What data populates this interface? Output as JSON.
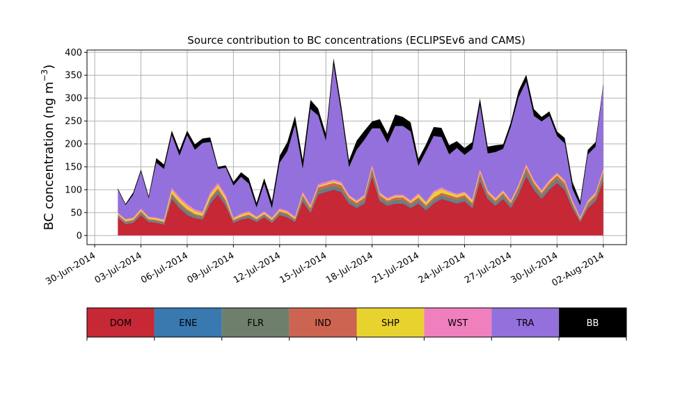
{
  "chart_data": {
    "type": "area",
    "title": "Source contribution to BC concentrations (ECLIPSEv6 and CAMS)",
    "ylabel": "BC concentration (ng m",
    "ylabel_sup": "−3",
    "ylabel_close": ")",
    "xlabel": "",
    "grid": true,
    "ylim": [
      -20,
      405
    ],
    "yticks": [
      0,
      50,
      100,
      150,
      200,
      250,
      300,
      350,
      400
    ],
    "xlim": [
      "2014-06-29T12:00",
      "2014-08-03T12:00"
    ],
    "xticks": [
      {
        "date": "2014-06-30",
        "label": "30-Jun-2014"
      },
      {
        "date": "2014-07-03",
        "label": "03-Jul-2014"
      },
      {
        "date": "2014-07-06",
        "label": "06-Jul-2014"
      },
      {
        "date": "2014-07-09",
        "label": "09-Jul-2014"
      },
      {
        "date": "2014-07-12",
        "label": "12-Jul-2014"
      },
      {
        "date": "2014-07-15",
        "label": "15-Jul-2014"
      },
      {
        "date": "2014-07-18",
        "label": "18-Jul-2014"
      },
      {
        "date": "2014-07-21",
        "label": "21-Jul-2014"
      },
      {
        "date": "2014-07-24",
        "label": "24-Jul-2014"
      },
      {
        "date": "2014-07-27",
        "label": "27-Jul-2014"
      },
      {
        "date": "2014-07-30",
        "label": "30-Jul-2014"
      },
      {
        "date": "2014-08-02",
        "label": "02-Aug-2014"
      }
    ],
    "x": [
      "2014-07-01T12:00",
      "2014-07-02T00:00",
      "2014-07-02T12:00",
      "2014-07-03T00:00",
      "2014-07-03T12:00",
      "2014-07-04T00:00",
      "2014-07-04T12:00",
      "2014-07-05T00:00",
      "2014-07-05T12:00",
      "2014-07-06T00:00",
      "2014-07-06T12:00",
      "2014-07-07T00:00",
      "2014-07-07T12:00",
      "2014-07-08T00:00",
      "2014-07-08T12:00",
      "2014-07-09T00:00",
      "2014-07-09T12:00",
      "2014-07-10T00:00",
      "2014-07-10T12:00",
      "2014-07-11T00:00",
      "2014-07-11T12:00",
      "2014-07-12T00:00",
      "2014-07-12T12:00",
      "2014-07-13T00:00",
      "2014-07-13T12:00",
      "2014-07-14T00:00",
      "2014-07-14T12:00",
      "2014-07-15T00:00",
      "2014-07-15T12:00",
      "2014-07-16T00:00",
      "2014-07-16T12:00",
      "2014-07-17T00:00",
      "2014-07-17T12:00",
      "2014-07-18T00:00",
      "2014-07-18T12:00",
      "2014-07-19T00:00",
      "2014-07-19T12:00",
      "2014-07-20T00:00",
      "2014-07-20T12:00",
      "2014-07-21T00:00",
      "2014-07-21T12:00",
      "2014-07-22T00:00",
      "2014-07-22T12:00",
      "2014-07-23T00:00",
      "2014-07-23T12:00",
      "2014-07-24T00:00",
      "2014-07-24T12:00",
      "2014-07-25T00:00",
      "2014-07-25T12:00",
      "2014-07-26T00:00",
      "2014-07-26T12:00",
      "2014-07-27T00:00",
      "2014-07-27T12:00",
      "2014-07-28T00:00",
      "2014-07-28T12:00",
      "2014-07-29T00:00",
      "2014-07-29T12:00",
      "2014-07-30T00:00",
      "2014-07-30T12:00",
      "2014-07-31T00:00",
      "2014-07-31T12:00",
      "2014-08-01T00:00",
      "2014-08-01T12:00",
      "2014-08-02T00:00"
    ],
    "series": [
      {
        "name": "DOM",
        "color": "#c62836",
        "values": [
          40,
          25,
          28,
          45,
          30,
          28,
          24,
          80,
          60,
          45,
          38,
          35,
          70,
          90,
          65,
          28,
          35,
          38,
          30,
          40,
          28,
          45,
          40,
          30,
          75,
          50,
          90,
          95,
          100,
          95,
          70,
          60,
          70,
          130,
          75,
          65,
          70,
          70,
          60,
          70,
          55,
          70,
          80,
          75,
          70,
          75,
          60,
          120,
          80,
          65,
          80,
          60,
          90,
          130,
          100,
          80,
          100,
          115,
          100,
          60,
          30,
          60,
          75,
          120
        ]
      },
      {
        "name": "ENE",
        "color": "#3a78b0",
        "values": [
          1,
          1,
          1,
          1,
          1,
          1,
          1,
          2,
          2,
          2,
          1,
          1,
          2,
          2,
          2,
          1,
          1,
          1,
          1,
          1,
          1,
          1,
          1,
          1,
          2,
          1,
          2,
          2,
          2,
          2,
          2,
          2,
          2,
          2,
          2,
          2,
          2,
          2,
          2,
          2,
          2,
          2,
          2,
          2,
          2,
          2,
          2,
          2,
          2,
          2,
          2,
          2,
          2,
          2,
          2,
          2,
          2,
          2,
          2,
          2,
          1,
          2,
          2,
          3
        ]
      },
      {
        "name": "FLR",
        "color": "#6e7f6c",
        "values": [
          3,
          3,
          3,
          4,
          3,
          3,
          3,
          6,
          6,
          6,
          5,
          4,
          6,
          6,
          6,
          3,
          3,
          4,
          3,
          3,
          3,
          4,
          4,
          3,
          6,
          5,
          7,
          7,
          7,
          7,
          6,
          5,
          6,
          8,
          6,
          5,
          6,
          6,
          5,
          6,
          5,
          6,
          6,
          6,
          6,
          6,
          5,
          8,
          6,
          5,
          6,
          5,
          7,
          9,
          7,
          6,
          7,
          7,
          7,
          5,
          3,
          5,
          6,
          8
        ]
      },
      {
        "name": "IND",
        "color": "#cd6452",
        "values": [
          2,
          2,
          2,
          3,
          2,
          2,
          2,
          4,
          4,
          4,
          3,
          3,
          4,
          5,
          4,
          2,
          2,
          3,
          2,
          3,
          2,
          3,
          3,
          2,
          5,
          4,
          6,
          6,
          6,
          6,
          5,
          4,
          5,
          7,
          5,
          4,
          5,
          5,
          4,
          5,
          4,
          5,
          5,
          5,
          5,
          5,
          4,
          7,
          5,
          4,
          5,
          4,
          6,
          8,
          6,
          5,
          6,
          7,
          6,
          4,
          2,
          4,
          5,
          8
        ]
      },
      {
        "name": "SHP",
        "color": "#e8d22e",
        "values": [
          2,
          3,
          3,
          3,
          3,
          3,
          3,
          7,
          7,
          7,
          6,
          5,
          7,
          7,
          6,
          3,
          4,
          4,
          3,
          3,
          3,
          3,
          3,
          3,
          3,
          3,
          3,
          3,
          3,
          3,
          3,
          3,
          3,
          3,
          3,
          3,
          3,
          3,
          3,
          6,
          5,
          10,
          8,
          6,
          5,
          5,
          5,
          3,
          3,
          3,
          3,
          3,
          3,
          3,
          3,
          3,
          3,
          3,
          3,
          3,
          2,
          3,
          3,
          3
        ]
      },
      {
        "name": "WST",
        "color": "#f07fbd",
        "values": [
          2,
          2,
          2,
          3,
          2,
          2,
          2,
          5,
          5,
          5,
          4,
          4,
          5,
          5,
          5,
          2,
          3,
          3,
          2,
          3,
          2,
          3,
          3,
          2,
          4,
          3,
          4,
          4,
          4,
          4,
          3,
          3,
          3,
          4,
          3,
          3,
          3,
          3,
          3,
          3,
          3,
          4,
          4,
          3,
          3,
          3,
          3,
          4,
          3,
          3,
          3,
          3,
          3,
          4,
          3,
          3,
          3,
          3,
          3,
          3,
          2,
          3,
          3,
          4
        ]
      },
      {
        "name": "TRA",
        "color": "#9370db",
        "values": [
          50,
          30,
          50,
          80,
          40,
          120,
          110,
          115,
          90,
          150,
          130,
          150,
          110,
          30,
          60,
          70,
          80,
          60,
          20,
          60,
          20,
          100,
          130,
          200,
          50,
          210,
          150,
          90,
          250,
          150,
          60,
          110,
          120,
          80,
          140,
          120,
          150,
          150,
          150,
          60,
          110,
          120,
          110,
          80,
          100,
          80,
          110,
          140,
          80,
          100,
          90,
          160,
          190,
          180,
          140,
          150,
          140,
          80,
          80,
          25,
          25,
          100,
          100,
          180
        ]
      },
      {
        "name": "BB",
        "color": "#000000",
        "values": [
          3,
          3,
          5,
          5,
          5,
          10,
          10,
          10,
          12,
          10,
          12,
          10,
          10,
          5,
          5,
          8,
          10,
          12,
          10,
          12,
          15,
          15,
          20,
          20,
          20,
          20,
          15,
          15,
          15,
          15,
          15,
          20,
          20,
          15,
          20,
          20,
          25,
          20,
          20,
          15,
          15,
          20,
          20,
          20,
          15,
          15,
          15,
          15,
          15,
          15,
          10,
          10,
          15,
          15,
          15,
          10,
          10,
          10,
          12,
          15,
          10,
          10,
          10,
          5
        ]
      }
    ]
  }
}
